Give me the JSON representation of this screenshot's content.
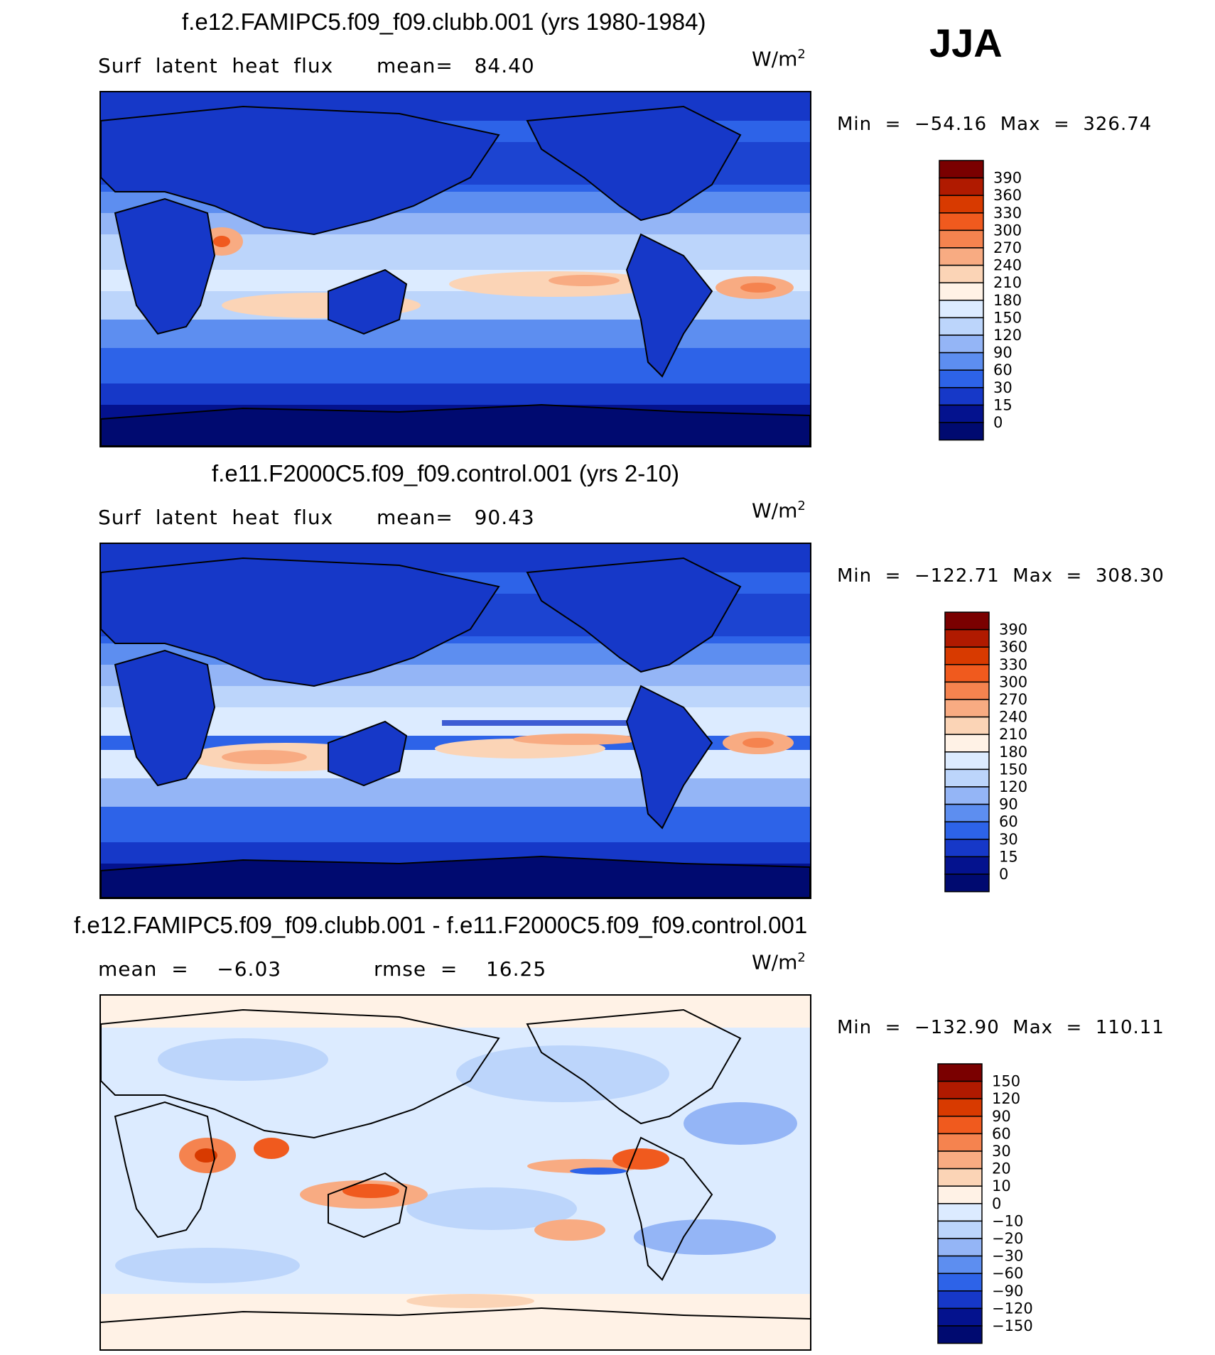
{
  "season": "JJA",
  "panels": [
    {
      "title": "f.e12.FAMIPC5.f09_f09.clubb.001 (yrs 1980-1984)",
      "left_text": "Surf  latent  heat  flux",
      "mid_text": "mean=   84.40",
      "units_base": "W/m",
      "units_exp": "2",
      "minmax": "Min  =  −54.16  Max  =  326.74",
      "colorbar_labels": [
        "390",
        "360",
        "330",
        "300",
        "270",
        "240",
        "210",
        "180",
        "150",
        "120",
        "90",
        "60",
        "30",
        "15",
        "0"
      ],
      "colors": [
        "#7a0000",
        "#b01a00",
        "#d83a00",
        "#f05a1e",
        "#f5834f",
        "#f8ab82",
        "#fbd4b6",
        "#fff2e6",
        "#dcebff",
        "#bcd5fb",
        "#94b5f6",
        "#5d8ef0",
        "#2d63e8",
        "#1638c8",
        "#04128e",
        "#000a70"
      ],
      "type": "abs"
    },
    {
      "title": "f.e11.F2000C5.f09_f09.control.001 (yrs 2-10)",
      "left_text": "Surf  latent  heat  flux",
      "mid_text": "mean=   90.43",
      "units_base": "W/m",
      "units_exp": "2",
      "minmax": "Min  =  −122.71  Max  =  308.30",
      "colorbar_labels": [
        "390",
        "360",
        "330",
        "300",
        "270",
        "240",
        "210",
        "180",
        "150",
        "120",
        "90",
        "60",
        "30",
        "15",
        "0"
      ],
      "colors": [
        "#7a0000",
        "#b01a00",
        "#d83a00",
        "#f05a1e",
        "#f5834f",
        "#f8ab82",
        "#fbd4b6",
        "#fff2e6",
        "#dcebff",
        "#bcd5fb",
        "#94b5f6",
        "#5d8ef0",
        "#2d63e8",
        "#1638c8",
        "#04128e",
        "#000a70"
      ],
      "type": "abs"
    },
    {
      "title": "f.e12.FAMIPC5.f09_f09.clubb.001 - f.e11.F2000C5.f09_f09.control.001",
      "left_text": "mean  =    −6.03",
      "mid_text": "rmse  =    16.25",
      "units_base": "W/m",
      "units_exp": "2",
      "minmax": "Min  =  −132.90  Max  =  110.11",
      "colorbar_labels": [
        "150",
        "120",
        "90",
        "60",
        "30",
        "20",
        "10",
        "0",
        "−10",
        "−20",
        "−30",
        "−60",
        "−90",
        "−120",
        "−150"
      ],
      "colors": [
        "#7a0000",
        "#b01a00",
        "#d83a00",
        "#f05a1e",
        "#f5834f",
        "#f8ab82",
        "#fbd4b6",
        "#fff2e6",
        "#dcebff",
        "#bcd5fb",
        "#94b5f6",
        "#5d8ef0",
        "#2d63e8",
        "#1638c8",
        "#04128e",
        "#000a70"
      ],
      "type": "diff"
    }
  ],
  "chart_data": [
    {
      "type": "heatmap",
      "title": "f.e12.FAMIPC5.f09_f09.clubb.001 (yrs 1980-1984)",
      "variable": "Surf latent heat flux",
      "units": "W/m2",
      "mean": 84.4,
      "min": -54.16,
      "max": 326.74,
      "contour_levels": [
        0,
        15,
        30,
        60,
        90,
        120,
        150,
        180,
        210,
        240,
        270,
        300,
        330,
        360,
        390
      ]
    },
    {
      "type": "heatmap",
      "title": "f.e11.F2000C5.f09_f09.control.001 (yrs 2-10)",
      "variable": "Surf latent heat flux",
      "units": "W/m2",
      "mean": 90.43,
      "min": -122.71,
      "max": 308.3,
      "contour_levels": [
        0,
        15,
        30,
        60,
        90,
        120,
        150,
        180,
        210,
        240,
        270,
        300,
        330,
        360,
        390
      ]
    },
    {
      "type": "heatmap",
      "title": "f.e12.FAMIPC5.f09_f09.clubb.001 - f.e11.F2000C5.f09_f09.control.001",
      "units": "W/m2",
      "mean": -6.03,
      "rmse": 16.25,
      "min": -132.9,
      "max": 110.11,
      "contour_levels": [
        -150,
        -120,
        -90,
        -60,
        -30,
        -20,
        -10,
        0,
        10,
        20,
        30,
        60,
        90,
        120,
        150
      ]
    }
  ]
}
